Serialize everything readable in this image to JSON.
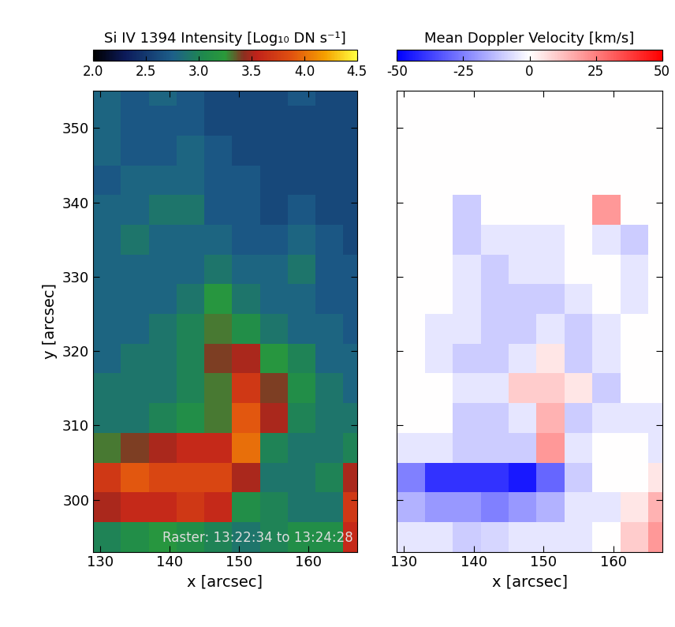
{
  "chart_data": [
    {
      "type": "heatmap",
      "title": "Si IV 1394 Intensity [Log₁₀ DN s⁻¹]",
      "x_label": "x [arcsec]",
      "y_label": "y [arcsec]",
      "annotation": "Raster: 13:22:34 to 13:24:28",
      "xlim": [
        129,
        167
      ],
      "ylim": [
        293,
        355
      ],
      "xticks": [
        130,
        140,
        150,
        160
      ],
      "yticks": [
        300,
        310,
        320,
        330,
        340,
        350
      ],
      "x_edges": [
        129,
        133,
        137,
        141,
        145,
        149,
        153,
        157,
        161,
        165,
        167
      ],
      "y_edges": [
        293,
        297,
        301,
        305,
        309,
        313,
        317,
        321,
        325,
        329,
        333,
        337,
        341,
        345,
        349,
        353,
        355
      ],
      "cells": [
        [
          3.0,
          3.1,
          3.2,
          3.1,
          3.0,
          2.9,
          3.0,
          3.1,
          3.1,
          3.6
        ],
        [
          3.5,
          3.6,
          3.6,
          3.7,
          3.6,
          3.1,
          3.0,
          2.9,
          2.9,
          3.7
        ],
        [
          3.7,
          3.9,
          3.8,
          3.8,
          3.8,
          3.5,
          2.9,
          2.9,
          3.0,
          3.5
        ],
        [
          3.3,
          3.4,
          3.5,
          3.6,
          3.6,
          4.0,
          3.0,
          2.9,
          2.9,
          3.0
        ],
        [
          2.9,
          2.9,
          3.0,
          3.1,
          3.3,
          3.9,
          3.5,
          3.0,
          2.9,
          2.9
        ],
        [
          2.9,
          2.9,
          2.9,
          3.0,
          3.3,
          3.7,
          3.4,
          3.1,
          2.9,
          2.8
        ],
        [
          2.8,
          2.9,
          2.9,
          3.0,
          3.4,
          3.5,
          3.2,
          3.0,
          2.8,
          2.8
        ],
        [
          2.8,
          2.8,
          2.9,
          3.0,
          3.3,
          3.1,
          2.9,
          2.8,
          2.8,
          2.7
        ],
        [
          2.8,
          2.8,
          2.8,
          2.9,
          3.2,
          2.9,
          2.8,
          2.8,
          2.7,
          2.7
        ],
        [
          2.8,
          2.8,
          2.8,
          2.8,
          2.9,
          2.8,
          2.8,
          2.9,
          2.7,
          2.7
        ],
        [
          2.8,
          2.9,
          2.8,
          2.8,
          2.8,
          2.7,
          2.7,
          2.8,
          2.7,
          2.6
        ],
        [
          2.8,
          2.8,
          2.9,
          2.9,
          2.7,
          2.7,
          2.6,
          2.7,
          2.6,
          2.6
        ],
        [
          2.7,
          2.8,
          2.8,
          2.8,
          2.7,
          2.7,
          2.6,
          2.6,
          2.6,
          2.6
        ],
        [
          2.8,
          2.7,
          2.7,
          2.8,
          2.7,
          2.6,
          2.6,
          2.6,
          2.6,
          2.6
        ],
        [
          2.8,
          2.7,
          2.7,
          2.7,
          2.6,
          2.6,
          2.6,
          2.6,
          2.6,
          2.6
        ],
        [
          2.8,
          2.7,
          2.8,
          2.7,
          2.6,
          2.6,
          2.6,
          2.7,
          2.6,
          2.6
        ]
      ],
      "colorbar_range": [
        2.0,
        4.5
      ],
      "colorbar_ticks": [
        {
          "value": 2.0,
          "label": "2.0"
        },
        {
          "value": 2.5,
          "label": "2.5"
        },
        {
          "value": 3.0,
          "label": "3.0"
        },
        {
          "value": 3.5,
          "label": "3.5"
        },
        {
          "value": 4.0,
          "label": "4.0"
        },
        {
          "value": 4.5,
          "label": "4.5"
        }
      ]
    },
    {
      "type": "heatmap",
      "title": "Mean Doppler Velocity [km/s]",
      "x_label": "x [arcsec]",
      "tick_labels": "x",
      "xlim": [
        129,
        167
      ],
      "ylim": [
        293,
        355
      ],
      "xticks": [
        130,
        140,
        150,
        160
      ],
      "yticks": [
        300,
        310,
        320,
        330,
        340,
        350
      ],
      "x_edges": [
        129,
        133,
        137,
        141,
        145,
        149,
        153,
        157,
        161,
        165,
        167
      ],
      "y_edges": [
        293,
        297,
        301,
        305,
        309,
        313,
        317,
        321,
        325,
        329,
        333,
        337,
        341,
        345,
        349,
        353,
        355
      ],
      "cells": [
        [
          -5,
          -5,
          -10,
          -8,
          -5,
          -5,
          -5,
          0,
          10,
          20
        ],
        [
          -15,
          -20,
          -20,
          -25,
          -20,
          -15,
          -5,
          -5,
          5,
          15
        ],
        [
          -25,
          -40,
          -40,
          -40,
          -45,
          -30,
          -10,
          0,
          0,
          5
        ],
        [
          -5,
          -5,
          -10,
          -10,
          -10,
          20,
          -5,
          0,
          0,
          -5
        ],
        [
          0,
          0,
          -10,
          -10,
          -5,
          15,
          -10,
          -5,
          -5,
          -5
        ],
        [
          0,
          0,
          -5,
          -5,
          10,
          10,
          5,
          -10,
          0,
          0
        ],
        [
          0,
          -5,
          -10,
          -10,
          -5,
          5,
          -10,
          -5,
          0,
          0
        ],
        [
          0,
          -5,
          -5,
          -10,
          -10,
          -5,
          -10,
          -5,
          0,
          0
        ],
        [
          0,
          0,
          -5,
          -10,
          -10,
          -10,
          -5,
          0,
          -5,
          0
        ],
        [
          0,
          0,
          -5,
          -10,
          -5,
          -5,
          0,
          0,
          -5,
          0
        ],
        [
          0,
          0,
          -10,
          -5,
          -5,
          -5,
          0,
          -5,
          -10,
          0
        ],
        [
          0,
          0,
          -10,
          0,
          0,
          0,
          0,
          20,
          0,
          0
        ],
        [
          0,
          0,
          0,
          0,
          0,
          0,
          0,
          0,
          0,
          0
        ],
        [
          0,
          0,
          0,
          0,
          0,
          0,
          0,
          0,
          0,
          0
        ],
        [
          0,
          0,
          0,
          0,
          0,
          0,
          0,
          0,
          0,
          0
        ],
        [
          0,
          0,
          0,
          0,
          0,
          0,
          0,
          0,
          0,
          0
        ]
      ],
      "colorbar_range": [
        -50,
        50
      ],
      "colorbar_ticks": [
        -50,
        -25,
        0,
        25,
        50
      ]
    }
  ]
}
